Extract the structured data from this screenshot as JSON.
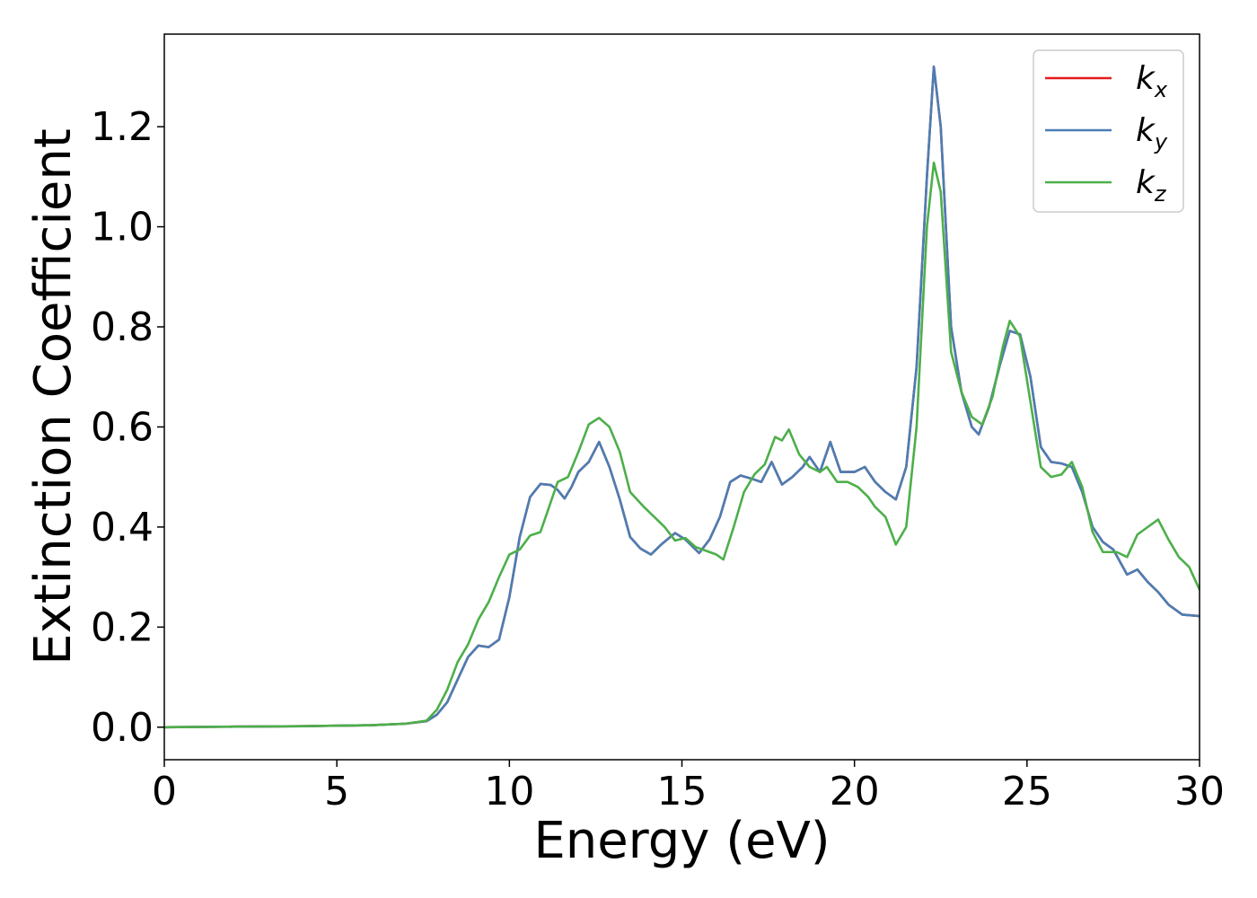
{
  "chart_data": {
    "type": "line",
    "title": "",
    "xlabel": "Energy (eV)",
    "ylabel": "Extinction Coefficient",
    "xlim": [
      0,
      30
    ],
    "ylim": [
      -0.065,
      1.385
    ],
    "xticks": [
      0,
      5,
      10,
      15,
      20,
      25,
      30
    ],
    "xtick_labels": [
      "0",
      "5",
      "10",
      "15",
      "20",
      "25",
      "30"
    ],
    "yticks": [
      0.0,
      0.2,
      0.4,
      0.6,
      0.8,
      1.0,
      1.2
    ],
    "ytick_labels": [
      "0.0",
      "0.2",
      "0.4",
      "0.6",
      "0.8",
      "1.0",
      "1.2"
    ],
    "grid": false,
    "legend_position": "top-right",
    "series": [
      {
        "name": "k",
        "subscript": "x",
        "color": "#e41a1c",
        "points": [
          [
            0,
            0.0
          ],
          [
            2,
            0.001
          ],
          [
            4,
            0.002
          ],
          [
            6,
            0.004
          ],
          [
            7,
            0.007
          ],
          [
            7.6,
            0.012
          ],
          [
            7.9,
            0.025
          ],
          [
            8.2,
            0.05
          ],
          [
            8.5,
            0.095
          ],
          [
            8.8,
            0.14
          ],
          [
            9.1,
            0.163
          ],
          [
            9.4,
            0.16
          ],
          [
            9.7,
            0.175
          ],
          [
            10.0,
            0.26
          ],
          [
            10.3,
            0.38
          ],
          [
            10.6,
            0.46
          ],
          [
            10.9,
            0.486
          ],
          [
            11.2,
            0.484
          ],
          [
            11.4,
            0.474
          ],
          [
            11.6,
            0.457
          ],
          [
            11.8,
            0.48
          ],
          [
            12.0,
            0.51
          ],
          [
            12.3,
            0.53
          ],
          [
            12.6,
            0.57
          ],
          [
            12.9,
            0.52
          ],
          [
            13.2,
            0.455
          ],
          [
            13.5,
            0.38
          ],
          [
            13.8,
            0.357
          ],
          [
            14.1,
            0.345
          ],
          [
            14.4,
            0.365
          ],
          [
            14.8,
            0.388
          ],
          [
            15.1,
            0.375
          ],
          [
            15.5,
            0.348
          ],
          [
            15.8,
            0.375
          ],
          [
            16.1,
            0.42
          ],
          [
            16.4,
            0.49
          ],
          [
            16.7,
            0.503
          ],
          [
            17.0,
            0.497
          ],
          [
            17.3,
            0.49
          ],
          [
            17.6,
            0.53
          ],
          [
            17.9,
            0.485
          ],
          [
            18.2,
            0.5
          ],
          [
            18.5,
            0.52
          ],
          [
            18.7,
            0.54
          ],
          [
            19.0,
            0.51
          ],
          [
            19.3,
            0.57
          ],
          [
            19.6,
            0.51
          ],
          [
            20.0,
            0.51
          ],
          [
            20.3,
            0.52
          ],
          [
            20.6,
            0.49
          ],
          [
            20.9,
            0.47
          ],
          [
            21.2,
            0.455
          ],
          [
            21.5,
            0.52
          ],
          [
            21.8,
            0.72
          ],
          [
            22.1,
            1.1
          ],
          [
            22.3,
            1.32
          ],
          [
            22.5,
            1.2
          ],
          [
            22.8,
            0.8
          ],
          [
            23.1,
            0.67
          ],
          [
            23.4,
            0.6
          ],
          [
            23.6,
            0.585
          ],
          [
            23.9,
            0.64
          ],
          [
            24.2,
            0.72
          ],
          [
            24.5,
            0.792
          ],
          [
            24.8,
            0.785
          ],
          [
            25.1,
            0.7
          ],
          [
            25.4,
            0.56
          ],
          [
            25.7,
            0.53
          ],
          [
            26.0,
            0.527
          ],
          [
            26.3,
            0.52
          ],
          [
            26.6,
            0.47
          ],
          [
            26.9,
            0.4
          ],
          [
            27.2,
            0.37
          ],
          [
            27.5,
            0.355
          ],
          [
            27.9,
            0.305
          ],
          [
            28.2,
            0.315
          ],
          [
            28.5,
            0.29
          ],
          [
            28.8,
            0.27
          ],
          [
            29.1,
            0.245
          ],
          [
            29.5,
            0.225
          ],
          [
            30.0,
            0.222
          ]
        ]
      },
      {
        "name": "k",
        "subscript": "y",
        "color": "#4a7eb4",
        "points": [
          [
            0,
            0.0
          ],
          [
            2,
            0.001
          ],
          [
            4,
            0.002
          ],
          [
            6,
            0.004
          ],
          [
            7,
            0.007
          ],
          [
            7.6,
            0.012
          ],
          [
            7.9,
            0.025
          ],
          [
            8.2,
            0.05
          ],
          [
            8.5,
            0.095
          ],
          [
            8.8,
            0.14
          ],
          [
            9.1,
            0.163
          ],
          [
            9.4,
            0.16
          ],
          [
            9.7,
            0.175
          ],
          [
            10.0,
            0.26
          ],
          [
            10.3,
            0.38
          ],
          [
            10.6,
            0.46
          ],
          [
            10.9,
            0.486
          ],
          [
            11.2,
            0.484
          ],
          [
            11.4,
            0.474
          ],
          [
            11.6,
            0.457
          ],
          [
            11.8,
            0.48
          ],
          [
            12.0,
            0.51
          ],
          [
            12.3,
            0.53
          ],
          [
            12.6,
            0.57
          ],
          [
            12.9,
            0.52
          ],
          [
            13.2,
            0.455
          ],
          [
            13.5,
            0.38
          ],
          [
            13.8,
            0.357
          ],
          [
            14.1,
            0.345
          ],
          [
            14.4,
            0.365
          ],
          [
            14.8,
            0.388
          ],
          [
            15.1,
            0.375
          ],
          [
            15.5,
            0.348
          ],
          [
            15.8,
            0.375
          ],
          [
            16.1,
            0.42
          ],
          [
            16.4,
            0.49
          ],
          [
            16.7,
            0.503
          ],
          [
            17.0,
            0.497
          ],
          [
            17.3,
            0.49
          ],
          [
            17.6,
            0.53
          ],
          [
            17.9,
            0.485
          ],
          [
            18.2,
            0.5
          ],
          [
            18.5,
            0.52
          ],
          [
            18.7,
            0.54
          ],
          [
            19.0,
            0.51
          ],
          [
            19.3,
            0.57
          ],
          [
            19.6,
            0.51
          ],
          [
            20.0,
            0.51
          ],
          [
            20.3,
            0.52
          ],
          [
            20.6,
            0.49
          ],
          [
            20.9,
            0.47
          ],
          [
            21.2,
            0.455
          ],
          [
            21.5,
            0.52
          ],
          [
            21.8,
            0.72
          ],
          [
            22.1,
            1.1
          ],
          [
            22.3,
            1.32
          ],
          [
            22.5,
            1.2
          ],
          [
            22.8,
            0.8
          ],
          [
            23.1,
            0.67
          ],
          [
            23.4,
            0.6
          ],
          [
            23.6,
            0.585
          ],
          [
            23.9,
            0.64
          ],
          [
            24.2,
            0.72
          ],
          [
            24.5,
            0.792
          ],
          [
            24.8,
            0.785
          ],
          [
            25.1,
            0.7
          ],
          [
            25.4,
            0.56
          ],
          [
            25.7,
            0.53
          ],
          [
            26.0,
            0.527
          ],
          [
            26.3,
            0.52
          ],
          [
            26.6,
            0.47
          ],
          [
            26.9,
            0.4
          ],
          [
            27.2,
            0.37
          ],
          [
            27.5,
            0.355
          ],
          [
            27.9,
            0.305
          ],
          [
            28.2,
            0.315
          ],
          [
            28.5,
            0.29
          ],
          [
            28.8,
            0.27
          ],
          [
            29.1,
            0.245
          ],
          [
            29.5,
            0.225
          ],
          [
            30.0,
            0.222
          ]
        ]
      },
      {
        "name": "k",
        "subscript": "z",
        "color": "#4daf4a",
        "points": [
          [
            0,
            0.0
          ],
          [
            2,
            0.001
          ],
          [
            4,
            0.002
          ],
          [
            6,
            0.004
          ],
          [
            7,
            0.007
          ],
          [
            7.6,
            0.013
          ],
          [
            7.9,
            0.035
          ],
          [
            8.2,
            0.075
          ],
          [
            8.5,
            0.13
          ],
          [
            8.8,
            0.165
          ],
          [
            9.1,
            0.215
          ],
          [
            9.4,
            0.25
          ],
          [
            9.7,
            0.3
          ],
          [
            10.0,
            0.345
          ],
          [
            10.3,
            0.355
          ],
          [
            10.6,
            0.383
          ],
          [
            10.9,
            0.39
          ],
          [
            11.1,
            0.43
          ],
          [
            11.4,
            0.49
          ],
          [
            11.7,
            0.5
          ],
          [
            12.0,
            0.55
          ],
          [
            12.3,
            0.605
          ],
          [
            12.6,
            0.618
          ],
          [
            12.9,
            0.6
          ],
          [
            13.2,
            0.55
          ],
          [
            13.5,
            0.47
          ],
          [
            13.9,
            0.44
          ],
          [
            14.2,
            0.42
          ],
          [
            14.5,
            0.4
          ],
          [
            14.8,
            0.373
          ],
          [
            15.1,
            0.378
          ],
          [
            15.4,
            0.36
          ],
          [
            15.8,
            0.35
          ],
          [
            16.0,
            0.345
          ],
          [
            16.2,
            0.335
          ],
          [
            16.5,
            0.4
          ],
          [
            16.8,
            0.47
          ],
          [
            17.1,
            0.505
          ],
          [
            17.4,
            0.525
          ],
          [
            17.7,
            0.58
          ],
          [
            17.9,
            0.573
          ],
          [
            18.1,
            0.595
          ],
          [
            18.4,
            0.545
          ],
          [
            18.7,
            0.52
          ],
          [
            19.0,
            0.51
          ],
          [
            19.2,
            0.52
          ],
          [
            19.5,
            0.49
          ],
          [
            19.8,
            0.49
          ],
          [
            20.1,
            0.48
          ],
          [
            20.4,
            0.46
          ],
          [
            20.6,
            0.44
          ],
          [
            20.9,
            0.42
          ],
          [
            21.2,
            0.365
          ],
          [
            21.5,
            0.4
          ],
          [
            21.8,
            0.6
          ],
          [
            22.1,
            1.0
          ],
          [
            22.3,
            1.128
          ],
          [
            22.5,
            1.07
          ],
          [
            22.8,
            0.75
          ],
          [
            23.1,
            0.67
          ],
          [
            23.4,
            0.62
          ],
          [
            23.7,
            0.605
          ],
          [
            24.0,
            0.66
          ],
          [
            24.3,
            0.76
          ],
          [
            24.5,
            0.812
          ],
          [
            24.8,
            0.78
          ],
          [
            25.1,
            0.65
          ],
          [
            25.4,
            0.52
          ],
          [
            25.7,
            0.5
          ],
          [
            26.0,
            0.505
          ],
          [
            26.3,
            0.53
          ],
          [
            26.6,
            0.48
          ],
          [
            26.9,
            0.39
          ],
          [
            27.2,
            0.35
          ],
          [
            27.6,
            0.35
          ],
          [
            27.9,
            0.34
          ],
          [
            28.2,
            0.385
          ],
          [
            28.5,
            0.4
          ],
          [
            28.8,
            0.415
          ],
          [
            29.1,
            0.375
          ],
          [
            29.4,
            0.34
          ],
          [
            29.7,
            0.32
          ],
          [
            30.0,
            0.275
          ]
        ]
      }
    ]
  }
}
